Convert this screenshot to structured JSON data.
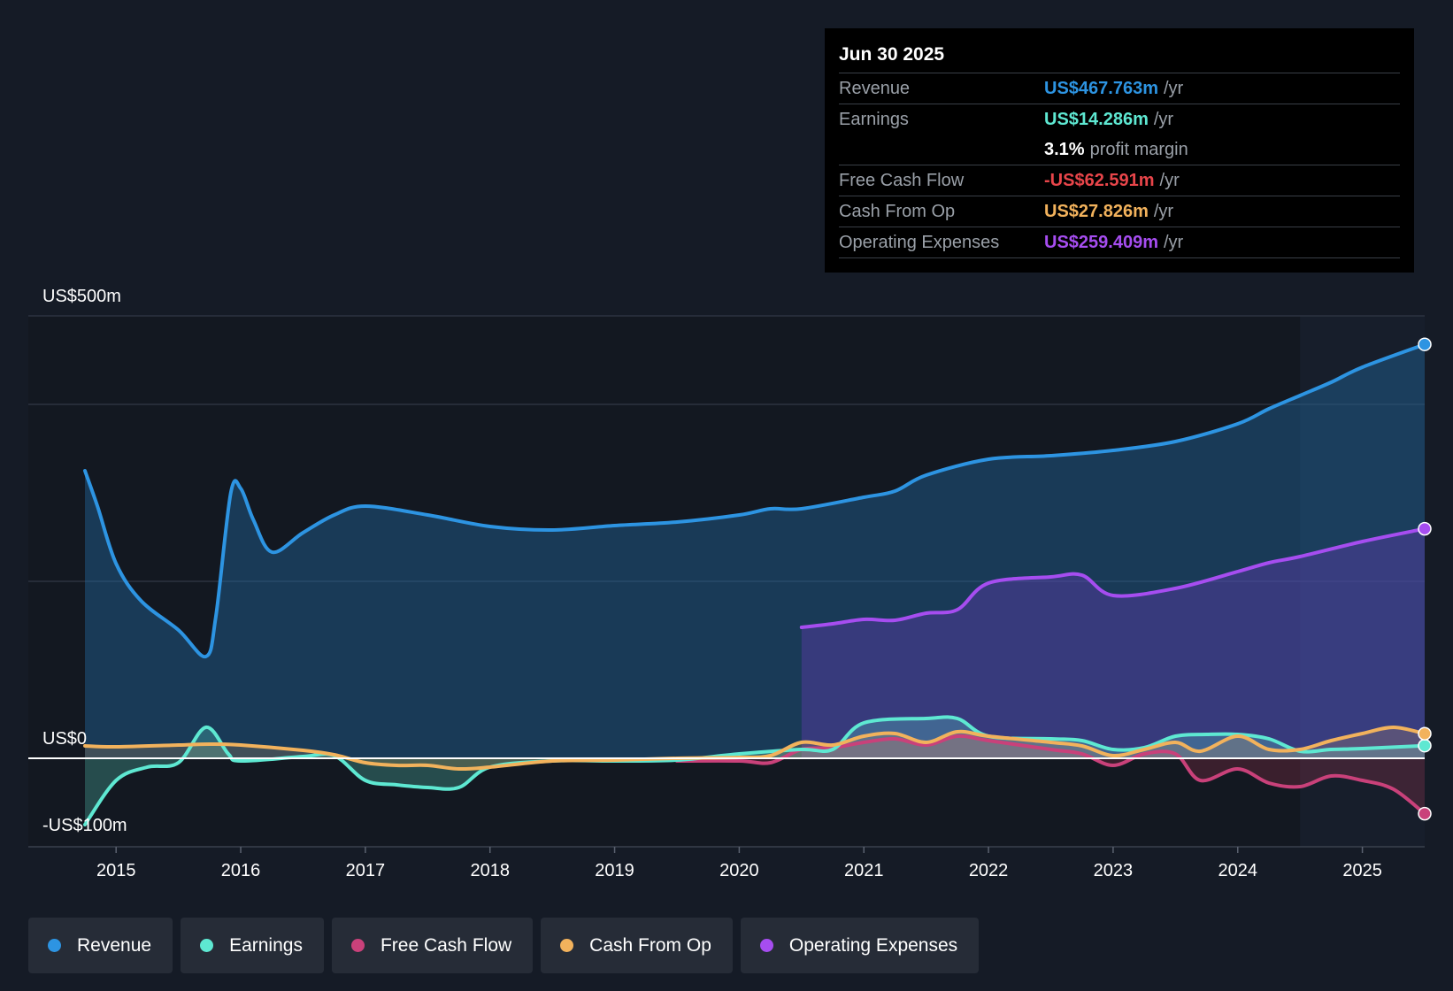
{
  "tooltip": {
    "date": "Jun 30 2025",
    "rows": [
      {
        "label": "Revenue",
        "value": "US$467.763m",
        "unit": "/yr",
        "color": "#2d94e2"
      },
      {
        "label": "Earnings",
        "value": "US$14.286m",
        "unit": "/yr",
        "color": "#5ee8d2"
      },
      {
        "label": "",
        "value": "3.1%",
        "unit": "profit margin",
        "color": "#ffffff"
      },
      {
        "label": "Free Cash Flow",
        "value": "-US$62.591m",
        "unit": "/yr",
        "color": "#e8454a"
      },
      {
        "label": "Cash From Op",
        "value": "US$27.826m",
        "unit": "/yr",
        "color": "#f2b25c"
      },
      {
        "label": "Operating Expenses",
        "value": "US$259.409m",
        "unit": "/yr",
        "color": "#a64df0"
      }
    ]
  },
  "legend": [
    {
      "label": "Revenue",
      "color": "#2d94e2"
    },
    {
      "label": "Earnings",
      "color": "#5ee8d2"
    },
    {
      "label": "Free Cash Flow",
      "color": "#c9417a"
    },
    {
      "label": "Cash From Op",
      "color": "#f2b25c"
    },
    {
      "label": "Operating Expenses",
      "color": "#a64df0"
    }
  ],
  "chart_data": {
    "type": "line",
    "ylim": [
      -100,
      500
    ],
    "xlim": [
      2014.75,
      2025.5
    ],
    "forecast_start": 2024.5,
    "y_labels": [
      {
        "value": 500,
        "text": "US$500m"
      },
      {
        "value": 0,
        "text": "US$0"
      },
      {
        "value": -100,
        "text": "-US$100m"
      }
    ],
    "gridlines": [
      400,
      200
    ],
    "x_ticks": [
      {
        "value": 2015,
        "label": "2015"
      },
      {
        "value": 2016,
        "label": "2016"
      },
      {
        "value": 2017,
        "label": "2017"
      },
      {
        "value": 2018,
        "label": "2018"
      },
      {
        "value": 2019,
        "label": "2019"
      },
      {
        "value": 2020,
        "label": "2020"
      },
      {
        "value": 2021,
        "label": "2021"
      },
      {
        "value": 2022,
        "label": "2022"
      },
      {
        "value": 2023,
        "label": "2023"
      },
      {
        "value": 2024,
        "label": "2024"
      },
      {
        "value": 2025,
        "label": "2025"
      }
    ],
    "series": [
      {
        "name": "Revenue",
        "color": "#2d94e2",
        "fill": "rgba(34,110,170,0.40)",
        "end_marker": true,
        "points": [
          [
            2014.75,
            325
          ],
          [
            2014.85,
            285
          ],
          [
            2015.0,
            220
          ],
          [
            2015.2,
            178
          ],
          [
            2015.5,
            145
          ],
          [
            2015.72,
            115
          ],
          [
            2015.8,
            160
          ],
          [
            2015.92,
            300
          ],
          [
            2016.0,
            305
          ],
          [
            2016.1,
            270
          ],
          [
            2016.25,
            233
          ],
          [
            2016.5,
            255
          ],
          [
            2016.75,
            275
          ],
          [
            2017.0,
            285
          ],
          [
            2017.5,
            275
          ],
          [
            2018.0,
            262
          ],
          [
            2018.5,
            258
          ],
          [
            2019.0,
            263
          ],
          [
            2019.5,
            267
          ],
          [
            2020.0,
            275
          ],
          [
            2020.25,
            282
          ],
          [
            2020.5,
            282
          ],
          [
            2021.0,
            295
          ],
          [
            2021.25,
            302
          ],
          [
            2021.5,
            320
          ],
          [
            2022.0,
            338
          ],
          [
            2022.5,
            342
          ],
          [
            2023.0,
            348
          ],
          [
            2023.5,
            358
          ],
          [
            2024.0,
            378
          ],
          [
            2024.25,
            395
          ],
          [
            2024.5,
            410
          ],
          [
            2024.75,
            425
          ],
          [
            2025.0,
            442
          ],
          [
            2025.5,
            467.8
          ]
        ]
      },
      {
        "name": "Operating Expenses",
        "color": "#a64df0",
        "fill": "rgba(100,60,180,0.40)",
        "end_marker": true,
        "points": [
          [
            2020.5,
            148
          ],
          [
            2020.75,
            152
          ],
          [
            2021.0,
            157
          ],
          [
            2021.25,
            156
          ],
          [
            2021.5,
            164
          ],
          [
            2021.75,
            168
          ],
          [
            2022.0,
            198
          ],
          [
            2022.5,
            205
          ],
          [
            2022.75,
            207
          ],
          [
            2023.0,
            184
          ],
          [
            2023.5,
            192
          ],
          [
            2024.0,
            211
          ],
          [
            2024.25,
            221
          ],
          [
            2024.5,
            228
          ],
          [
            2025.0,
            245
          ],
          [
            2025.5,
            259.4
          ]
        ]
      },
      {
        "name": "Free Cash Flow",
        "color": "#c9417a",
        "fill": "rgba(200,60,90,0.22)",
        "end_marker": true,
        "points": [
          [
            2019.5,
            -3
          ],
          [
            2020.0,
            -3
          ],
          [
            2020.25,
            -5
          ],
          [
            2020.5,
            10
          ],
          [
            2020.75,
            12
          ],
          [
            2021.0,
            18
          ],
          [
            2021.25,
            22
          ],
          [
            2021.5,
            15
          ],
          [
            2021.75,
            25
          ],
          [
            2022.0,
            20
          ],
          [
            2022.5,
            10
          ],
          [
            2022.75,
            5
          ],
          [
            2023.0,
            -8
          ],
          [
            2023.25,
            5
          ],
          [
            2023.5,
            5
          ],
          [
            2023.7,
            -25
          ],
          [
            2024.0,
            -12
          ],
          [
            2024.25,
            -28
          ],
          [
            2024.5,
            -32
          ],
          [
            2024.75,
            -20
          ],
          [
            2025.0,
            -25
          ],
          [
            2025.25,
            -35
          ],
          [
            2025.5,
            -62.6
          ]
        ]
      },
      {
        "name": "Earnings",
        "color": "#5ee8d2",
        "fill": "rgba(94,232,210,0.25)",
        "end_marker": true,
        "points": [
          [
            2014.75,
            -75
          ],
          [
            2015.0,
            -25
          ],
          [
            2015.25,
            -10
          ],
          [
            2015.5,
            -5
          ],
          [
            2015.72,
            35
          ],
          [
            2015.9,
            5
          ],
          [
            2016.0,
            -3
          ],
          [
            2016.5,
            2
          ],
          [
            2016.75,
            3
          ],
          [
            2017.0,
            -25
          ],
          [
            2017.25,
            -30
          ],
          [
            2017.5,
            -33
          ],
          [
            2017.75,
            -33
          ],
          [
            2018.0,
            -10
          ],
          [
            2018.5,
            -3
          ],
          [
            2019.0,
            -3
          ],
          [
            2019.5,
            -2
          ],
          [
            2020.0,
            5
          ],
          [
            2020.5,
            10
          ],
          [
            2020.75,
            10
          ],
          [
            2021.0,
            40
          ],
          [
            2021.5,
            45
          ],
          [
            2021.75,
            45
          ],
          [
            2022.0,
            25
          ],
          [
            2022.5,
            22
          ],
          [
            2022.75,
            20
          ],
          [
            2023.0,
            10
          ],
          [
            2023.25,
            12
          ],
          [
            2023.5,
            25
          ],
          [
            2023.75,
            27
          ],
          [
            2024.0,
            27
          ],
          [
            2024.25,
            22
          ],
          [
            2024.5,
            8
          ],
          [
            2024.75,
            10
          ],
          [
            2025.0,
            11
          ],
          [
            2025.5,
            14.3
          ]
        ]
      },
      {
        "name": "Cash From Op",
        "color": "#f2b25c",
        "fill": "rgba(242,178,92,0.18)",
        "end_marker": true,
        "points": [
          [
            2014.75,
            14
          ],
          [
            2015.0,
            13
          ],
          [
            2015.5,
            15
          ],
          [
            2015.75,
            16
          ],
          [
            2016.0,
            15
          ],
          [
            2016.5,
            9
          ],
          [
            2016.75,
            4
          ],
          [
            2017.0,
            -5
          ],
          [
            2017.25,
            -8
          ],
          [
            2017.5,
            -8
          ],
          [
            2017.75,
            -12
          ],
          [
            2018.0,
            -10
          ],
          [
            2018.5,
            -3
          ],
          [
            2019.0,
            -2
          ],
          [
            2019.5,
            0
          ],
          [
            2020.0,
            1
          ],
          [
            2020.25,
            3
          ],
          [
            2020.5,
            18
          ],
          [
            2020.75,
            15
          ],
          [
            2021.0,
            25
          ],
          [
            2021.25,
            28
          ],
          [
            2021.5,
            18
          ],
          [
            2021.75,
            30
          ],
          [
            2022.0,
            25
          ],
          [
            2022.5,
            18
          ],
          [
            2022.75,
            14
          ],
          [
            2023.0,
            3
          ],
          [
            2023.25,
            10
          ],
          [
            2023.5,
            18
          ],
          [
            2023.7,
            8
          ],
          [
            2024.0,
            25
          ],
          [
            2024.25,
            10
          ],
          [
            2024.5,
            10
          ],
          [
            2024.75,
            20
          ],
          [
            2025.0,
            28
          ],
          [
            2025.25,
            35
          ],
          [
            2025.5,
            27.8
          ]
        ]
      }
    ]
  }
}
